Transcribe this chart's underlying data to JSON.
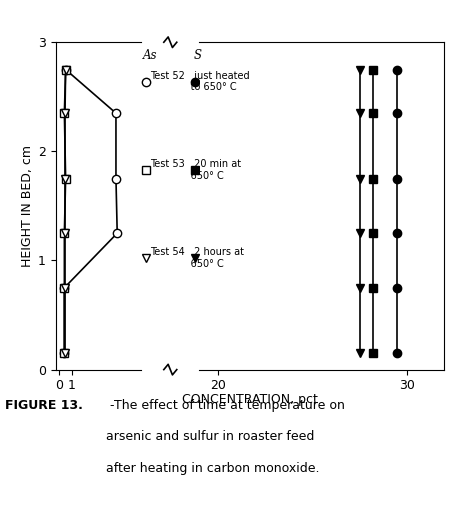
{
  "xlabel": "CONCENTRATION, pct",
  "ylabel": "HEIGHT IN BED, cm",
  "ylim": [
    0,
    3
  ],
  "as_test52_x": [
    0.5,
    4.5,
    4.5,
    4.6,
    0.4,
    0.4
  ],
  "as_test52_y": [
    2.75,
    2.35,
    1.75,
    1.25,
    0.75,
    0.15
  ],
  "as_test53_x": [
    0.5,
    0.4,
    0.5,
    0.4,
    0.4,
    0.4
  ],
  "as_test53_y": [
    2.75,
    2.35,
    1.75,
    1.25,
    0.75,
    0.15
  ],
  "as_test54_x": [
    0.5,
    0.45,
    0.45,
    0.45,
    0.45,
    0.45
  ],
  "as_test54_y": [
    2.75,
    2.35,
    1.75,
    1.25,
    0.75,
    0.15
  ],
  "s_test52_x": [
    29.5,
    29.5,
    29.5,
    29.5,
    29.5,
    29.5
  ],
  "s_test52_y": [
    2.75,
    2.35,
    1.75,
    1.25,
    0.75,
    0.15
  ],
  "s_test53_x": [
    28.2,
    28.2,
    28.2,
    28.2,
    28.2,
    28.2
  ],
  "s_test53_y": [
    2.75,
    2.35,
    1.75,
    1.25,
    0.75,
    0.15
  ],
  "s_test54_x": [
    27.5,
    27.5,
    27.5,
    27.5,
    27.5,
    27.5
  ],
  "s_test54_y": [
    2.75,
    2.35,
    1.75,
    1.25,
    0.75,
    0.15
  ],
  "background": "#ffffff",
  "line_color": "#000000",
  "legend_as_label": "As",
  "legend_s_label": "S",
  "legend_entries": [
    {
      "label": "Test 52   just heated\n             to 650° C",
      "marker": "o"
    },
    {
      "label": "Test 53   20 min at\n             650° C",
      "marker": "s"
    },
    {
      "label": "Test 54   2 hours at\n             650° C",
      "marker": "v"
    }
  ],
  "caption_bold": "FIGURE 13.",
  "caption_dash": " -",
  "caption_lines": [
    "The effect of time at temperature on",
    "arsenic and sulfur in roaster feed",
    "after heating in carbon monoxide."
  ]
}
